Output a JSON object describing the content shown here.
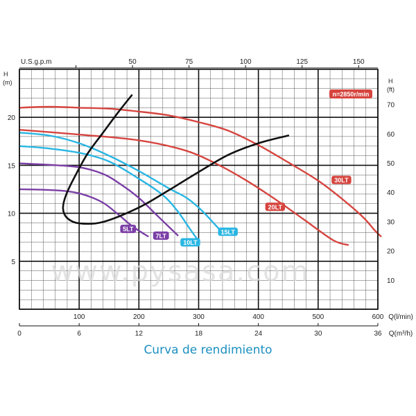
{
  "chart_data": {
    "type": "line",
    "title": "Curva de rendimiento",
    "speed_label": "n=2850r/min",
    "watermark": "www.pysasa.com",
    "axes": {
      "x_bottom": {
        "label": "Q(l/min)",
        "range": [
          0,
          600
        ],
        "ticks": [
          0,
          100,
          200,
          300,
          400,
          500,
          600
        ]
      },
      "x_bottom2": {
        "label": "Q(m³/h)",
        "range": [
          0,
          36
        ],
        "ticks": [
          0,
          6,
          12,
          18,
          24,
          30,
          36
        ]
      },
      "x_top": {
        "label": "U.S.g.p.m",
        "range": [
          0,
          158.5
        ],
        "ticks": [
          50,
          75,
          100,
          125,
          150
        ]
      },
      "y_left": {
        "label": "H (m)",
        "range": [
          0,
          25
        ],
        "ticks": [
          5,
          10,
          15,
          20
        ]
      },
      "y_right": {
        "label": "H (ft)",
        "range": [
          0,
          82
        ],
        "ticks": [
          10,
          20,
          30,
          40,
          50,
          60,
          70
        ]
      }
    },
    "grid": true,
    "series": [
      {
        "name": "5LT",
        "color": "#7b3fa6",
        "label_at": [
          182,
          8.3
        ],
        "points": [
          [
            0,
            12.5
          ],
          [
            40,
            12.45
          ],
          [
            80,
            12.3
          ],
          [
            110,
            11.9
          ],
          [
            140,
            11.1
          ],
          [
            165,
            9.9
          ],
          [
            190,
            8.6
          ],
          [
            215,
            7.6
          ]
        ]
      },
      {
        "name": "7LT",
        "color": "#7b3fa6",
        "label_at": [
          237,
          7.6
        ],
        "points": [
          [
            0,
            15.2
          ],
          [
            50,
            15.05
          ],
          [
            100,
            14.8
          ],
          [
            140,
            14.1
          ],
          [
            170,
            13.0
          ],
          [
            200,
            11.6
          ],
          [
            230,
            9.8
          ],
          [
            255,
            8.3
          ],
          [
            265,
            7.7
          ]
        ]
      },
      {
        "name": "10LT",
        "color": "#29b6e3",
        "label_at": [
          286,
          6.9
        ],
        "points": [
          [
            0,
            17.0
          ],
          [
            50,
            16.75
          ],
          [
            100,
            16.3
          ],
          [
            150,
            15.4
          ],
          [
            200,
            13.6
          ],
          [
            240,
            11.9
          ],
          [
            265,
            10.2
          ],
          [
            285,
            8.4
          ],
          [
            300,
            7.1
          ]
        ]
      },
      {
        "name": "15LT",
        "color": "#29b6e3",
        "label_at": [
          349,
          8.0
        ],
        "points": [
          [
            0,
            18.4
          ],
          [
            50,
            18.1
          ],
          [
            100,
            17.3
          ],
          [
            150,
            16.0
          ],
          [
            200,
            14.4
          ],
          [
            250,
            12.6
          ],
          [
            280,
            11.6
          ],
          [
            305,
            10.3
          ],
          [
            335,
            8.3
          ]
        ]
      },
      {
        "name": "20LT",
        "color": "#d6453f",
        "label_at": [
          428,
          10.6
        ],
        "points": [
          [
            0,
            18.7
          ],
          [
            100,
            18.2
          ],
          [
            200,
            17.6
          ],
          [
            275,
            16.6
          ],
          [
            325,
            15.3
          ],
          [
            375,
            13.6
          ],
          [
            425,
            11.6
          ],
          [
            475,
            9.4
          ],
          [
            525,
            7.2
          ],
          [
            550,
            6.7
          ]
        ]
      },
      {
        "name": "30LT",
        "color": "#d6453f",
        "label_at": [
          539,
          13.4
        ],
        "points": [
          [
            0,
            21.0
          ],
          [
            50,
            21.1
          ],
          [
            100,
            21.0
          ],
          [
            150,
            20.9
          ],
          [
            200,
            20.6
          ],
          [
            250,
            20.2
          ],
          [
            300,
            19.5
          ],
          [
            350,
            18.6
          ],
          [
            400,
            17.1
          ],
          [
            450,
            15.3
          ],
          [
            500,
            13.4
          ],
          [
            540,
            11.5
          ],
          [
            575,
            9.6
          ],
          [
            595,
            8.2
          ],
          [
            605,
            7.6
          ]
        ]
      }
    ],
    "efficiency_curve": {
      "color": "#111111",
      "points": [
        [
          188,
          22.3
        ],
        [
          165,
          20.5
        ],
        [
          140,
          18.4
        ],
        [
          115,
          16.3
        ],
        [
          95,
          14.1
        ],
        [
          78,
          11.9
        ],
        [
          73,
          10.5
        ],
        [
          80,
          9.5
        ],
        [
          100,
          8.95
        ],
        [
          140,
          9.1
        ],
        [
          200,
          10.6
        ],
        [
          250,
          12.4
        ],
        [
          300,
          14.3
        ],
        [
          350,
          16.1
        ],
        [
          400,
          17.3
        ],
        [
          450,
          18.1
        ]
      ]
    }
  }
}
